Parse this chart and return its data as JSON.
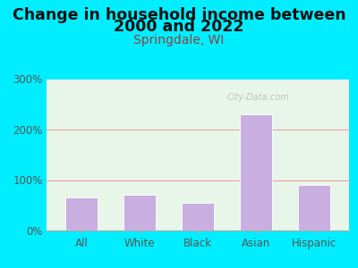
{
  "categories": [
    "All",
    "White",
    "Black",
    "Asian",
    "Hispanic"
  ],
  "values": [
    65,
    70,
    55,
    230,
    90
  ],
  "bar_color": "#c9aee0",
  "bar_edge_color": "#ffffff",
  "title_line1": "Change in household income between",
  "title_line2": "2000 and 2022",
  "subtitle": "Springdale, WI",
  "title_color": "#111111",
  "subtitle_color": "#8b4040",
  "outer_bg_color": "#00eeff",
  "plot_bg_color": "#e8f5e9",
  "ylabel_ticks": [
    "0%",
    "100%",
    "200%",
    "300%"
  ],
  "ytick_vals": [
    0,
    100,
    200,
    300
  ],
  "ylim": [
    0,
    300
  ],
  "grid_color": "#ee9999",
  "tick_label_color": "#555555",
  "watermark": "City-Data.com",
  "title_fontsize": 12.5,
  "subtitle_fontsize": 10,
  "tick_fontsize": 8.5,
  "ytick_fontsize": 8.5
}
